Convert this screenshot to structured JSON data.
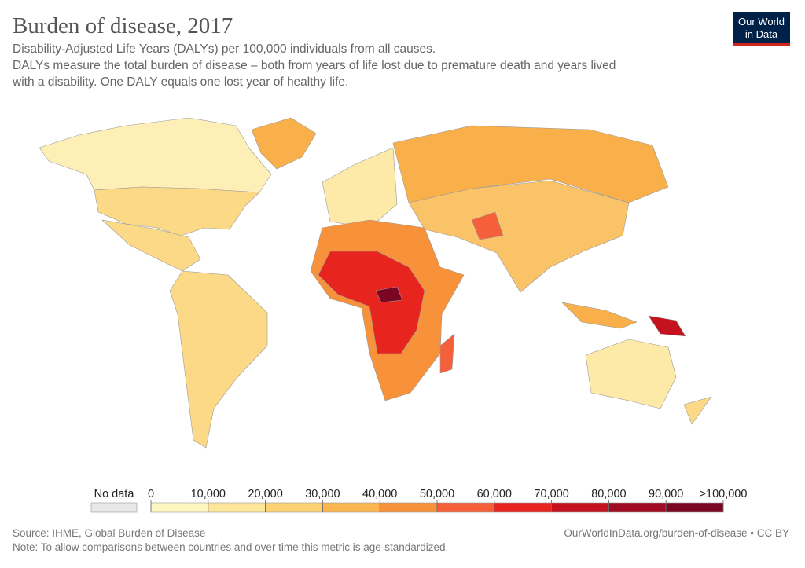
{
  "header": {
    "title": "Burden of disease, 2017",
    "subtitle": "Disability-Adjusted Life Years (DALYs) per 100,000 individuals from all causes.",
    "description": [
      "DALYs measure the total burden of disease – both from years of life lost due to premature death and years lived",
      "with a disability. One DALY equals one lost year of healthy life."
    ],
    "logo": [
      "Our World",
      "in Data"
    ]
  },
  "legend": {
    "no_data_label": "No data",
    "ticks": [
      0,
      {
        "value": 10000,
        "label": "10,000"
      },
      {
        "value": 20000,
        "label": "20,000"
      },
      {
        "value": 30000,
        "label": "30,000"
      },
      {
        "value": 40000,
        "label": "40,000"
      },
      {
        "value": 50000,
        "label": "50,000"
      },
      {
        "value": 60000,
        "label": "60,000"
      },
      {
        "value": 70000,
        "label": "70,000"
      },
      {
        "value": 80000,
        "label": "80,000"
      },
      {
        "value": 90000,
        "label": "90,000"
      },
      {
        "value": 100000,
        "label": ">100,000"
      }
    ],
    "colors": [
      "#fff7c2",
      "#fde69a",
      "#fcd274",
      "#fbb64f",
      "#f7923a",
      "#f5603a",
      "#e8241f",
      "#c4121e",
      "#a10a23",
      "#7b0624"
    ]
  },
  "footer": {
    "source": "Source: IHME, Global Burden of Disease",
    "note": "Note: To allow comparisons between countries and over time this metric is age-standardized.",
    "url": "OurWorldInData.org/burden-of-disease • CC BY"
  }
}
